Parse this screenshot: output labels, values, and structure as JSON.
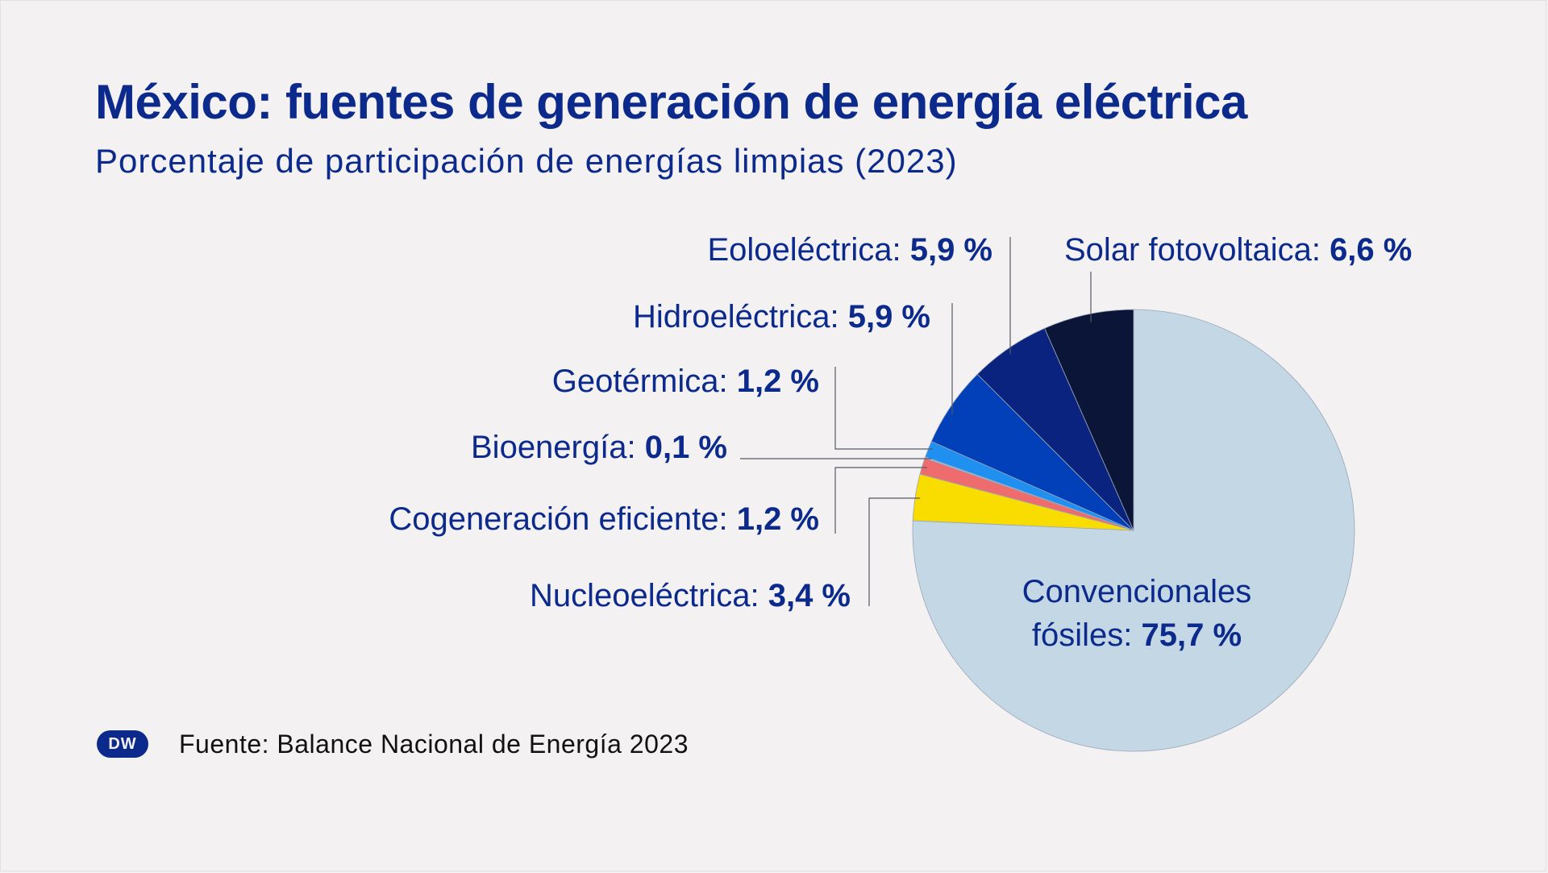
{
  "header": {
    "title": "México: fuentes de generación de energía eléctrica",
    "subtitle": "Porcentaje de participación de energías limpias (2023)"
  },
  "chart_data": {
    "type": "pie",
    "title": "México: fuentes de generación de energía eléctrica",
    "subtitle": "Porcentaje de participación de energías limpias (2023)",
    "slices": [
      {
        "label": "Convencionales fósiles",
        "value": 75.7,
        "value_text": "75,7 %",
        "color": "#c3d7e4"
      },
      {
        "label": "Nucleoeléctrica",
        "value": 3.4,
        "value_text": "3,4 %",
        "color": "#f9dc00"
      },
      {
        "label": "Cogeneración eficiente",
        "value": 1.2,
        "value_text": "1,2 %",
        "color": "#ee6b6e"
      },
      {
        "label": "Bioenergía",
        "value": 0.1,
        "value_text": "0,1 %",
        "color": "#8ec9f0"
      },
      {
        "label": "Geotérmica",
        "value": 1.2,
        "value_text": "1,2 %",
        "color": "#1f8ff0"
      },
      {
        "label": "Hidroeléctrica",
        "value": 5.9,
        "value_text": "5,9 %",
        "color": "#0140b8"
      },
      {
        "label": "Eoloeléctrica",
        "value": 5.9,
        "value_text": "5,9 %",
        "color": "#0a237e"
      },
      {
        "label": "Solar fotovoltaica",
        "value": 6.6,
        "value_text": "6,6 %",
        "color": "#0a1538"
      }
    ]
  },
  "footer": {
    "logo": "DW",
    "source": "Fuente: Balance Nacional de Energía 2023"
  }
}
